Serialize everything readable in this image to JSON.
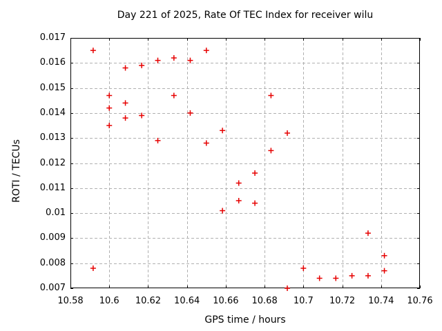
{
  "chart_data": {
    "type": "scatter",
    "title": "Day 221 of 2025, Rate Of TEC Index for receiver wilu",
    "xlabel": "GPS time / hours",
    "ylabel": "ROTI / TECUs",
    "xlim": [
      10.58,
      10.76
    ],
    "ylim": [
      0.007,
      0.017
    ],
    "x_ticks": [
      10.58,
      10.6,
      10.62,
      10.64,
      10.66,
      10.68,
      10.7,
      10.72,
      10.74,
      10.76
    ],
    "x_tick_labels": [
      "10.58",
      "10.6",
      "10.62",
      "10.64",
      "10.66",
      "10.68",
      "10.7",
      "10.72",
      "10.74",
      "10.76"
    ],
    "y_ticks": [
      0.007,
      0.008,
      0.009,
      0.01,
      0.011,
      0.012,
      0.013,
      0.014,
      0.015,
      0.016,
      0.017
    ],
    "y_tick_labels": [
      "0.007",
      "0.008",
      "0.009",
      "0.01",
      "0.011",
      "0.012",
      "0.013",
      "0.014",
      "0.015",
      "0.016",
      "0.017"
    ],
    "grid": true,
    "legend_position": "none",
    "marker": "plus",
    "marker_color": "#e60000",
    "grid_color": "#b0b0b0",
    "frame_color": "#000000",
    "points": [
      [
        10.5917,
        0.0165
      ],
      [
        10.5917,
        0.0078
      ],
      [
        10.6,
        0.0147
      ],
      [
        10.6,
        0.0142
      ],
      [
        10.6,
        0.0135
      ],
      [
        10.6083,
        0.0158
      ],
      [
        10.6083,
        0.0144
      ],
      [
        10.6083,
        0.0138
      ],
      [
        10.6167,
        0.0159
      ],
      [
        10.6167,
        0.0139
      ],
      [
        10.625,
        0.0161
      ],
      [
        10.625,
        0.0129
      ],
      [
        10.6333,
        0.0162
      ],
      [
        10.6333,
        0.0147
      ],
      [
        10.6417,
        0.0161
      ],
      [
        10.6417,
        0.014
      ],
      [
        10.65,
        0.0165
      ],
      [
        10.65,
        0.0128
      ],
      [
        10.6583,
        0.0133
      ],
      [
        10.6583,
        0.0101
      ],
      [
        10.6667,
        0.0112
      ],
      [
        10.6667,
        0.0105
      ],
      [
        10.675,
        0.0116
      ],
      [
        10.675,
        0.0104
      ],
      [
        10.6833,
        0.0147
      ],
      [
        10.6833,
        0.0125
      ],
      [
        10.6917,
        0.0132
      ],
      [
        10.6917,
        0.007
      ],
      [
        10.7,
        0.0078
      ],
      [
        10.7083,
        0.0074
      ],
      [
        10.7167,
        0.0074
      ],
      [
        10.725,
        0.0075
      ],
      [
        10.7333,
        0.0092
      ],
      [
        10.7333,
        0.0075
      ],
      [
        10.7417,
        0.0083
      ],
      [
        10.7417,
        0.0077
      ]
    ]
  }
}
